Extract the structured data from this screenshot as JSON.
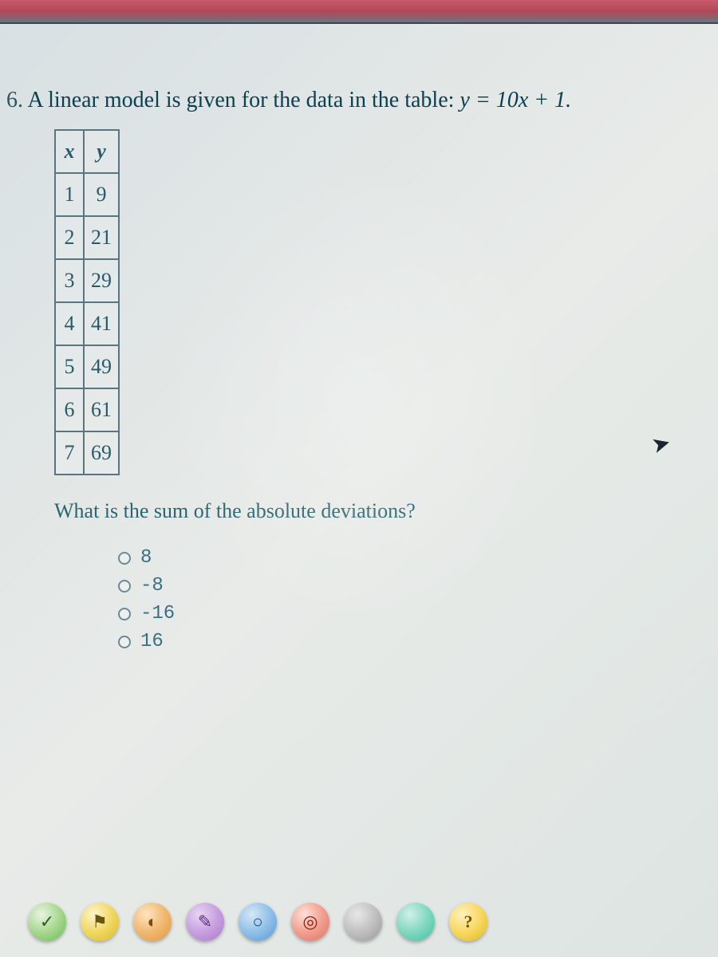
{
  "question": {
    "number": "6.",
    "text_prefix": "A linear model is given for the data in the table: ",
    "equation": "y = 10x + 1.",
    "sub_text": "What is the sum of the absolute deviations?"
  },
  "table": {
    "headers": {
      "col1": "x",
      "col2": "y"
    },
    "rows": [
      {
        "x": "1",
        "y": "9"
      },
      {
        "x": "2",
        "y": "21"
      },
      {
        "x": "3",
        "y": "29"
      },
      {
        "x": "4",
        "y": "41"
      },
      {
        "x": "5",
        "y": "49"
      },
      {
        "x": "6",
        "y": "61"
      },
      {
        "x": "7",
        "y": "69"
      }
    ],
    "border_color": "#5a7580",
    "text_color": "#2a5a6a",
    "cell_fontsize": 26
  },
  "options": [
    {
      "label": "8"
    },
    {
      "label": "-8"
    },
    {
      "label": "-16"
    },
    {
      "label": "16"
    }
  ],
  "colors": {
    "question_text": "#0a4050",
    "sub_question_text": "#2a6570",
    "option_text": "#3a7080",
    "background_start": "#d8e0e3",
    "background_end": "#dde4e2"
  },
  "toolbar": {
    "buttons": [
      {
        "name": "check",
        "glyph": "✓",
        "style": "btn-green"
      },
      {
        "name": "flag",
        "glyph": "⚑",
        "style": "btn-yellow"
      },
      {
        "name": "highlight",
        "glyph": "◐",
        "style": "btn-orange"
      },
      {
        "name": "note",
        "glyph": "✎",
        "style": "btn-purple"
      },
      {
        "name": "speak",
        "glyph": "○",
        "style": "btn-blue"
      },
      {
        "name": "target",
        "glyph": "◎",
        "style": "btn-red"
      },
      {
        "name": "blank1",
        "glyph": "",
        "style": "btn-gray"
      },
      {
        "name": "blank2",
        "glyph": "",
        "style": "btn-teal"
      },
      {
        "name": "help",
        "glyph": "?",
        "style": "btn-help"
      }
    ]
  }
}
